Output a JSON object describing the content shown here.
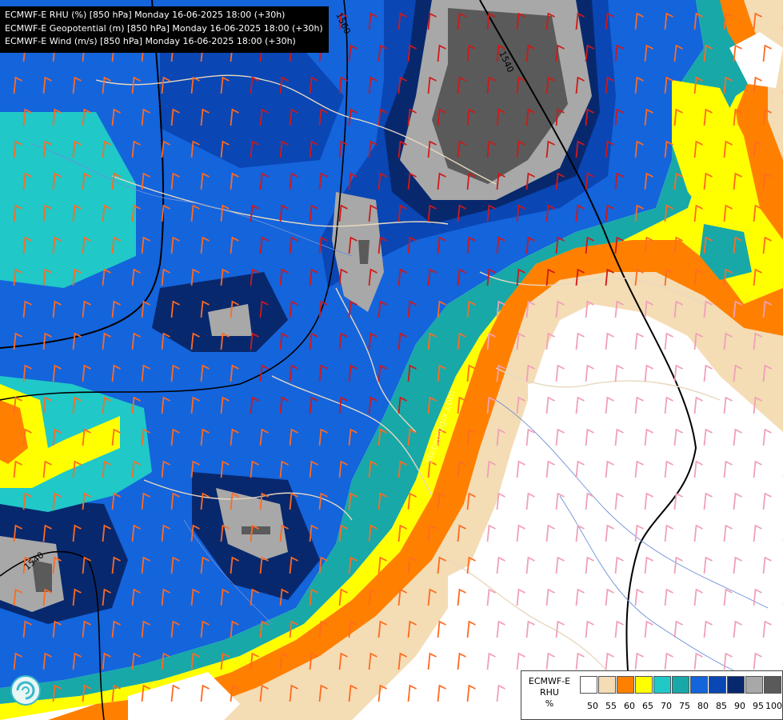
{
  "title_lines": [
    "ECMWF-E RHU (%) [850 hPa] Monday 16-06-2025 18:00 (+30h)",
    "ECMWF-E Geopotential (m) [850 hPa] Monday 16-06-2025 18:00 (+30h)",
    "ECMWF-E Wind (m/s) [850 hPa] Monday 16-06-2025 18:00 (+30h)"
  ],
  "contour_labels": [
    "1560",
    "1540",
    "1540"
  ],
  "watermark": "Meteologix.com",
  "legend": {
    "line1": "ECMWF-E",
    "line2": "RHU",
    "unit": "%",
    "ticks": [
      "50",
      "55",
      "60",
      "65",
      "70",
      "75",
      "80",
      "85",
      "90",
      "95",
      "100"
    ],
    "colors": [
      "#ffffff",
      "#f4dcb4",
      "#ff8000",
      "#ffff00",
      "#20c8c8",
      "#18a8a8",
      "#1464dc",
      "#0a46b4",
      "#08286e",
      "#a8a8a8",
      "#5a5a5a"
    ]
  },
  "logo": "logo-icon"
}
